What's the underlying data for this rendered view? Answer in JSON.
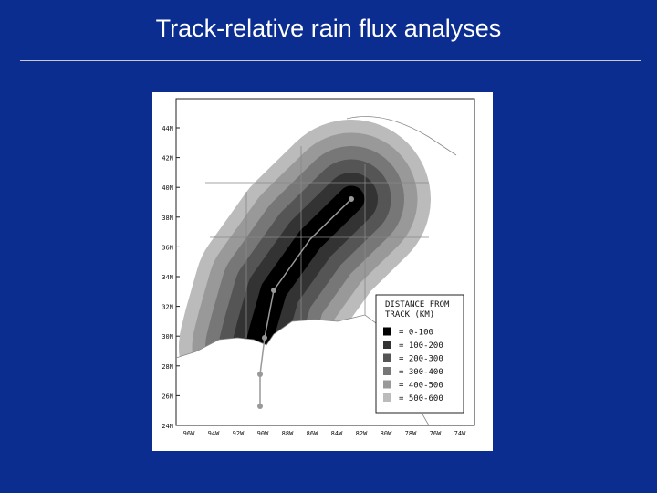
{
  "title": "Track-relative rain flux analyses",
  "map": {
    "lat_labels": [
      "44N",
      "42N",
      "40N",
      "38N",
      "36N",
      "34N",
      "32N",
      "30N",
      "28N",
      "26N",
      "24N"
    ],
    "lon_labels": [
      "96W",
      "94W",
      "92W",
      "90W",
      "88W",
      "86W",
      "84W",
      "82W",
      "80W",
      "78W",
      "76W",
      "74W"
    ],
    "legend": {
      "title": "DISTANCE FROM TRACK (KM)",
      "items": [
        {
          "label": "= 0-100",
          "color": "#000000"
        },
        {
          "label": "= 100-200",
          "color": "#333333"
        },
        {
          "label": "= 200-300",
          "color": "#555555"
        },
        {
          "label": "= 300-400",
          "color": "#777777"
        },
        {
          "label": "= 400-500",
          "color": "#999999"
        },
        {
          "label": "= 500-600",
          "color": "#bbbbbb"
        }
      ]
    }
  }
}
